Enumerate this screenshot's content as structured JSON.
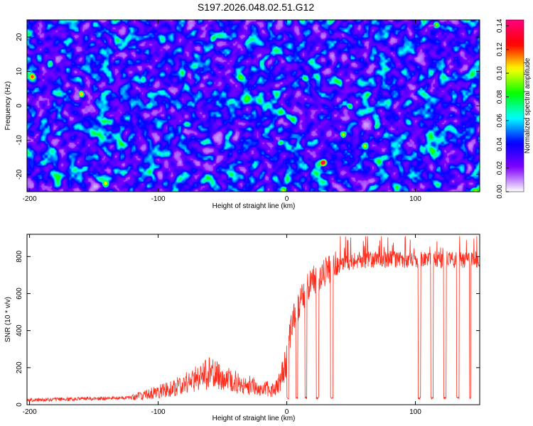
{
  "title": "S197.2026.048.02.51.G12",
  "chart_data": [
    {
      "type": "heatmap",
      "title": "S197.2026.048.02.51.G12",
      "xlabel": "Height of straight line (km)",
      "ylabel": "Frequency (Hz)",
      "xlim": [
        -202,
        150
      ],
      "ylim": [
        -25,
        25
      ],
      "x_ticks": [
        -200,
        -100,
        0,
        100
      ],
      "x_tick_labels": [
        "-200",
        "-100",
        "0",
        "100"
      ],
      "y_ticks": [
        -20,
        -10,
        0,
        10,
        20
      ],
      "y_tick_labels": [
        "-20",
        "-10",
        "0",
        "10",
        "20"
      ],
      "colorbar": {
        "label": "Normalized spectral amplitude",
        "range": [
          0,
          0.145
        ],
        "ticks": [
          0.0,
          0.02,
          0.04,
          0.06,
          0.08,
          0.1,
          0.12,
          0.14
        ],
        "tick_labels": [
          "0.00",
          "0.02",
          "0.04",
          "0.06",
          "0.08",
          "0.10",
          "0.12",
          "0.14"
        ],
        "colormap": [
          "#ffffff",
          "#8000ff",
          "#0000ff",
          "#00ffff",
          "#00ff00",
          "#ffff00",
          "#ff0000",
          "#ff0080"
        ]
      },
      "noise_description": "random speckle dominated by blue/purple with scattered cyan, green and a few red peaks"
    },
    {
      "type": "line",
      "xlabel": "Height of straight line (km)",
      "ylabel": "SNR (10 * v/v)",
      "xlim": [
        -202,
        150
      ],
      "ylim": [
        0,
        920
      ],
      "x_ticks": [
        -200,
        -100,
        0,
        100
      ],
      "x_tick_labels": [
        "-200",
        "-100",
        "0",
        "100"
      ],
      "y_ticks": [
        0,
        200,
        400,
        600,
        800
      ],
      "y_tick_labels": [
        "0",
        "200",
        "400",
        "600",
        "800"
      ],
      "series": [
        {
          "name": "SNR",
          "color": "#ff2a1a",
          "profile_x": [
            -202,
            -150,
            -120,
            -110,
            -100,
            -90,
            -80,
            -70,
            -60,
            -50,
            -40,
            -30,
            -20,
            -10,
            -5,
            0,
            3,
            6,
            10,
            15,
            20,
            25,
            30,
            35,
            40,
            50,
            60,
            70,
            80,
            90,
            100,
            110,
            120,
            130,
            140,
            150
          ],
          "profile_y": [
            22,
            28,
            35,
            45,
            60,
            75,
            95,
            120,
            145,
            130,
            105,
            90,
            75,
            70,
            110,
            250,
            380,
            470,
            530,
            600,
            650,
            680,
            700,
            720,
            740,
            760,
            770,
            770,
            770,
            770,
            770,
            770,
            770,
            770,
            770,
            770
          ],
          "dropouts_x": [
            [
              0,
              1.5
            ],
            [
              7,
              8.5
            ],
            [
              14,
              15.5
            ],
            [
              23,
              25
            ],
            [
              34,
              36
            ],
            [
              102,
              104
            ],
            [
              112,
              114
            ],
            [
              122,
              124
            ],
            [
              132,
              134
            ],
            [
              142,
              143
            ]
          ],
          "dropout_value": 30,
          "peak_value": 910
        }
      ]
    }
  ]
}
